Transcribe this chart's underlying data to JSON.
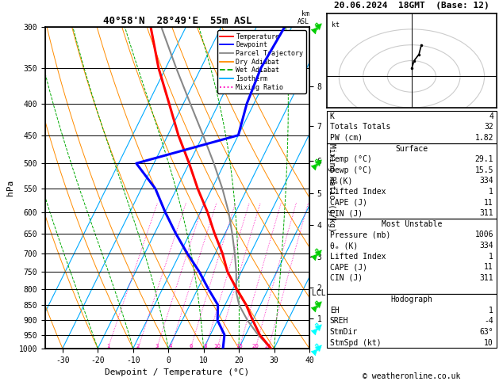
{
  "title_left": "40°58'N  28°49'E  55m ASL",
  "title_right": "20.06.2024  18GMT  (Base: 12)",
  "xlabel": "Dewpoint / Temperature (°C)",
  "ylabel_left": "hPa",
  "pressure_levels": [
    300,
    350,
    400,
    450,
    500,
    550,
    600,
    650,
    700,
    750,
    800,
    850,
    900,
    950,
    1000
  ],
  "pressure_labels": [
    "300",
    "350",
    "400",
    "450",
    "500",
    "550",
    "600",
    "650",
    "700",
    "750",
    "800",
    "850",
    "900",
    "950",
    "1000"
  ],
  "temp_xlim": [
    -35,
    40
  ],
  "temp_xticks": [
    -30,
    -20,
    -10,
    0,
    10,
    20,
    30,
    40
  ],
  "km_ticks": [
    1,
    2,
    3,
    4,
    5,
    6,
    7,
    8
  ],
  "km_pressures": [
    895,
    795,
    710,
    630,
    560,
    495,
    435,
    375
  ],
  "lcl_pressure": 812,
  "lcl_label": "LCL",
  "temperature_profile": {
    "pressure": [
      1000,
      950,
      900,
      850,
      800,
      750,
      700,
      650,
      600,
      550,
      500,
      450,
      400,
      350,
      300
    ],
    "temp": [
      29.1,
      24.0,
      20.0,
      16.0,
      11.0,
      6.0,
      2.0,
      -3.0,
      -8.0,
      -14.0,
      -20.0,
      -27.0,
      -34.0,
      -42.0,
      -50.0
    ]
  },
  "dewpoint_profile": {
    "pressure": [
      1000,
      950,
      900,
      850,
      800,
      750,
      700,
      650,
      600,
      550,
      500,
      450,
      400,
      350,
      300
    ],
    "dewp": [
      15.5,
      14.0,
      10.0,
      8.0,
      3.0,
      -2.0,
      -8.0,
      -14.0,
      -20.0,
      -26.0,
      -35.0,
      -10.0,
      -12.0,
      -13.0,
      -12.0
    ]
  },
  "parcel_profile": {
    "pressure": [
      1000,
      950,
      900,
      850,
      812,
      750,
      700,
      650,
      600,
      550,
      500,
      450,
      400,
      350,
      300
    ],
    "temp": [
      29.1,
      23.5,
      18.5,
      14.0,
      11.5,
      8.5,
      5.5,
      2.0,
      -2.0,
      -7.0,
      -13.0,
      -20.0,
      -28.0,
      -37.0,
      -47.0
    ]
  },
  "isotherms": [
    -40,
    -30,
    -20,
    -10,
    0,
    10,
    20,
    30,
    40,
    50
  ],
  "dry_adiabat_base_temps": [
    -40,
    -30,
    -20,
    -10,
    0,
    10,
    20,
    30,
    40,
    50,
    60,
    70
  ],
  "wet_adiabat_base_temps": [
    -20,
    -10,
    0,
    10,
    20,
    30,
    40
  ],
  "mixing_ratio_values": [
    1,
    2,
    3,
    4,
    6,
    8,
    10,
    15,
    20,
    25
  ],
  "mixing_ratio_labels": [
    "1",
    "2",
    "3",
    "4",
    "6",
    "8",
    "10",
    "15",
    "20",
    "25"
  ],
  "skew_deg": 45,
  "colors": {
    "temperature": "#ff0000",
    "dewpoint": "#0000ff",
    "parcel": "#888888",
    "dry_adiabat": "#ff8c00",
    "wet_adiabat": "#00aa00",
    "isotherm": "#00aaff",
    "mixing_ratio": "#ff00bb",
    "wind_low": "#00ffff",
    "wind_high": "#00cc00"
  },
  "legend_items": [
    {
      "label": "Temperature",
      "color": "#ff0000",
      "style": "solid"
    },
    {
      "label": "Dewpoint",
      "color": "#0000ff",
      "style": "solid"
    },
    {
      "label": "Parcel Trajectory",
      "color": "#888888",
      "style": "solid"
    },
    {
      "label": "Dry Adiabat",
      "color": "#ff8c00",
      "style": "solid"
    },
    {
      "label": "Wet Adiabat",
      "color": "#00aa00",
      "style": "dashed"
    },
    {
      "label": "Isotherm",
      "color": "#00aaff",
      "style": "solid"
    },
    {
      "label": "Mixing Ratio",
      "color": "#ff00bb",
      "style": "dotted"
    }
  ],
  "sounding_data": {
    "K": 4,
    "TotTot": 32,
    "PW_cm": 1.82,
    "surf_temp": 29.1,
    "surf_dewp": 15.5,
    "surf_theta_e": 334,
    "surf_lifted": 1,
    "surf_cape": 11,
    "surf_cin": 311,
    "mu_pressure": 1006,
    "mu_theta_e": 334,
    "mu_lifted": 1,
    "mu_cape": 11,
    "mu_cin": 311,
    "EH": 1,
    "SREH": -4,
    "StmDir": 63,
    "StmSpd": 10
  },
  "wind_barb_data": [
    {
      "pressure": 300,
      "color": "#00cc00",
      "flag": true
    },
    {
      "pressure": 500,
      "color": "#00cc00",
      "flag": true
    },
    {
      "pressure": 700,
      "color": "#00cc00",
      "flag": true
    },
    {
      "pressure": 850,
      "color": "#00cc00",
      "flag": false
    },
    {
      "pressure": 925,
      "color": "#00ffff",
      "flag": false
    },
    {
      "pressure": 1000,
      "color": "#00ffff",
      "flag": false
    }
  ],
  "copyright": "© weatheronline.co.uk"
}
